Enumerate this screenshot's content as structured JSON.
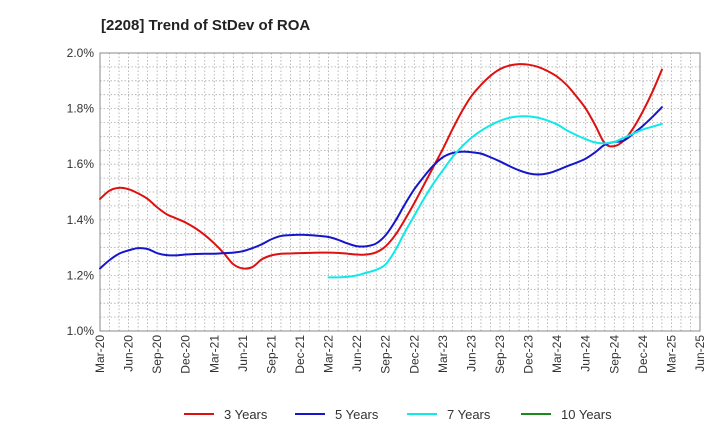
{
  "chart_data": {
    "type": "line",
    "title": "[2208]  Trend of StDev of ROA",
    "xlabel": "",
    "ylabel": "",
    "y_ticks": [
      "1.0%",
      "1.2%",
      "1.4%",
      "1.6%",
      "1.8%",
      "2.0%"
    ],
    "ylim": [
      1.0,
      2.0
    ],
    "x_ticks": [
      "Mar-20",
      "Jun-20",
      "Sep-20",
      "Dec-20",
      "Mar-21",
      "Jun-21",
      "Sep-21",
      "Dec-21",
      "Mar-22",
      "Jun-22",
      "Sep-22",
      "Dec-22",
      "Mar-23",
      "Jun-23",
      "Sep-23",
      "Dec-23",
      "Mar-24",
      "Jun-24",
      "Sep-24",
      "Dec-24",
      "Mar-25",
      "Jun-25"
    ],
    "grid": true,
    "legend_position": "bottom",
    "series": [
      {
        "name": "3 Years",
        "color": "#dd1111",
        "points": [
          [
            "Mar-20",
            1.475
          ],
          [
            "Apr-20",
            1.505
          ],
          [
            "May-20",
            1.515
          ],
          [
            "Jun-20",
            1.51
          ],
          [
            "Jul-20",
            1.495
          ],
          [
            "Aug-20",
            1.475
          ],
          [
            "Sep-20",
            1.445
          ],
          [
            "Oct-20",
            1.42
          ],
          [
            "Nov-20",
            1.405
          ],
          [
            "Dec-20",
            1.39
          ],
          [
            "Jan-21",
            1.37
          ],
          [
            "Feb-21",
            1.345
          ],
          [
            "Mar-21",
            1.315
          ],
          [
            "Apr-21",
            1.28
          ],
          [
            "May-21",
            1.24
          ],
          [
            "Jun-21",
            1.225
          ],
          [
            "Jul-21",
            1.23
          ],
          [
            "Aug-21",
            1.258
          ],
          [
            "Sep-21",
            1.272
          ],
          [
            "Oct-21",
            1.278
          ],
          [
            "Nov-21",
            1.279
          ],
          [
            "Dec-21",
            1.28
          ],
          [
            "Jan-22",
            1.281
          ],
          [
            "Feb-22",
            1.282
          ],
          [
            "Mar-22",
            1.282
          ],
          [
            "Apr-22",
            1.281
          ],
          [
            "May-22",
            1.278
          ],
          [
            "Jun-22",
            1.275
          ],
          [
            "Jul-22",
            1.275
          ],
          [
            "Aug-22",
            1.283
          ],
          [
            "Sep-22",
            1.305
          ],
          [
            "Oct-22",
            1.345
          ],
          [
            "Nov-22",
            1.4
          ],
          [
            "Dec-22",
            1.46
          ],
          [
            "Jan-23",
            1.525
          ],
          [
            "Feb-23",
            1.59
          ],
          [
            "Mar-23",
            1.655
          ],
          [
            "Apr-23",
            1.725
          ],
          [
            "May-23",
            1.79
          ],
          [
            "Jun-23",
            1.845
          ],
          [
            "Jul-23",
            1.885
          ],
          [
            "Aug-23",
            1.918
          ],
          [
            "Sep-23",
            1.942
          ],
          [
            "Oct-23",
            1.955
          ],
          [
            "Nov-23",
            1.96
          ],
          [
            "Dec-23",
            1.958
          ],
          [
            "Jan-24",
            1.95
          ],
          [
            "Feb-24",
            1.935
          ],
          [
            "Mar-24",
            1.915
          ],
          [
            "Apr-24",
            1.885
          ],
          [
            "May-24",
            1.845
          ],
          [
            "Jun-24",
            1.8
          ],
          [
            "Jul-24",
            1.74
          ],
          [
            "Aug-24",
            1.675
          ],
          [
            "Sep-24",
            1.665
          ],
          [
            "Oct-24",
            1.685
          ],
          [
            "Nov-24",
            1.73
          ],
          [
            "Dec-24",
            1.79
          ],
          [
            "Jan-25",
            1.86
          ],
          [
            "Feb-25",
            1.94
          ]
        ]
      },
      {
        "name": "5 Years",
        "color": "#1515cc",
        "points": [
          [
            "Mar-20",
            1.225
          ],
          [
            "Apr-20",
            1.255
          ],
          [
            "May-20",
            1.278
          ],
          [
            "Jun-20",
            1.29
          ],
          [
            "Jul-20",
            1.298
          ],
          [
            "Aug-20",
            1.295
          ],
          [
            "Sep-20",
            1.28
          ],
          [
            "Oct-20",
            1.273
          ],
          [
            "Nov-20",
            1.272
          ],
          [
            "Dec-20",
            1.275
          ],
          [
            "Jan-21",
            1.277
          ],
          [
            "Feb-21",
            1.278
          ],
          [
            "Mar-21",
            1.278
          ],
          [
            "Apr-21",
            1.28
          ],
          [
            "May-21",
            1.282
          ],
          [
            "Jun-21",
            1.287
          ],
          [
            "Jul-21",
            1.298
          ],
          [
            "Aug-21",
            1.312
          ],
          [
            "Sep-21",
            1.33
          ],
          [
            "Oct-21",
            1.342
          ],
          [
            "Nov-21",
            1.345
          ],
          [
            "Dec-21",
            1.346
          ],
          [
            "Jan-22",
            1.345
          ],
          [
            "Feb-22",
            1.342
          ],
          [
            "Mar-22",
            1.338
          ],
          [
            "Apr-22",
            1.328
          ],
          [
            "May-22",
            1.315
          ],
          [
            "Jun-22",
            1.305
          ],
          [
            "Jul-22",
            1.305
          ],
          [
            "Aug-22",
            1.315
          ],
          [
            "Sep-22",
            1.345
          ],
          [
            "Oct-22",
            1.395
          ],
          [
            "Nov-22",
            1.455
          ],
          [
            "Dec-22",
            1.51
          ],
          [
            "Jan-23",
            1.555
          ],
          [
            "Feb-23",
            1.595
          ],
          [
            "Mar-23",
            1.625
          ],
          [
            "Apr-23",
            1.64
          ],
          [
            "May-23",
            1.645
          ],
          [
            "Jun-23",
            1.643
          ],
          [
            "Jul-23",
            1.638
          ],
          [
            "Aug-23",
            1.625
          ],
          [
            "Sep-23",
            1.61
          ],
          [
            "Oct-23",
            1.593
          ],
          [
            "Nov-23",
            1.578
          ],
          [
            "Dec-23",
            1.567
          ],
          [
            "Jan-24",
            1.563
          ],
          [
            "Feb-24",
            1.567
          ],
          [
            "Mar-24",
            1.578
          ],
          [
            "Apr-24",
            1.592
          ],
          [
            "May-24",
            1.605
          ],
          [
            "Jun-24",
            1.62
          ],
          [
            "Jul-24",
            1.643
          ],
          [
            "Aug-24",
            1.67
          ],
          [
            "Sep-24",
            1.68
          ],
          [
            "Oct-24",
            1.685
          ],
          [
            "Nov-24",
            1.71
          ],
          [
            "Dec-24",
            1.738
          ],
          [
            "Jan-25",
            1.77
          ],
          [
            "Feb-25",
            1.805
          ]
        ]
      },
      {
        "name": "7 Years",
        "color": "#11e8e8",
        "points": [
          [
            "Mar-22",
            1.193
          ],
          [
            "Apr-22",
            1.193
          ],
          [
            "May-22",
            1.195
          ],
          [
            "Jun-22",
            1.2
          ],
          [
            "Jul-22",
            1.21
          ],
          [
            "Aug-22",
            1.22
          ],
          [
            "Sep-22",
            1.24
          ],
          [
            "Oct-22",
            1.29
          ],
          [
            "Nov-22",
            1.355
          ],
          [
            "Dec-22",
            1.415
          ],
          [
            "Jan-23",
            1.475
          ],
          [
            "Feb-23",
            1.53
          ],
          [
            "Mar-23",
            1.578
          ],
          [
            "Apr-23",
            1.625
          ],
          [
            "May-23",
            1.663
          ],
          [
            "Jun-23",
            1.695
          ],
          [
            "Jul-23",
            1.72
          ],
          [
            "Aug-23",
            1.74
          ],
          [
            "Sep-23",
            1.756
          ],
          [
            "Oct-23",
            1.767
          ],
          [
            "Nov-23",
            1.772
          ],
          [
            "Dec-23",
            1.772
          ],
          [
            "Jan-24",
            1.767
          ],
          [
            "Feb-24",
            1.757
          ],
          [
            "Mar-24",
            1.743
          ],
          [
            "Apr-24",
            1.722
          ],
          [
            "May-24",
            1.705
          ],
          [
            "Jun-24",
            1.69
          ],
          [
            "Jul-24",
            1.678
          ],
          [
            "Aug-24",
            1.675
          ],
          [
            "Sep-24",
            1.68
          ],
          [
            "Oct-24",
            1.695
          ],
          [
            "Nov-24",
            1.71
          ],
          [
            "Dec-24",
            1.725
          ],
          [
            "Jan-25",
            1.735
          ],
          [
            "Feb-25",
            1.745
          ]
        ]
      },
      {
        "name": "10 Years",
        "color": "#1a8a1a",
        "points": []
      }
    ]
  }
}
